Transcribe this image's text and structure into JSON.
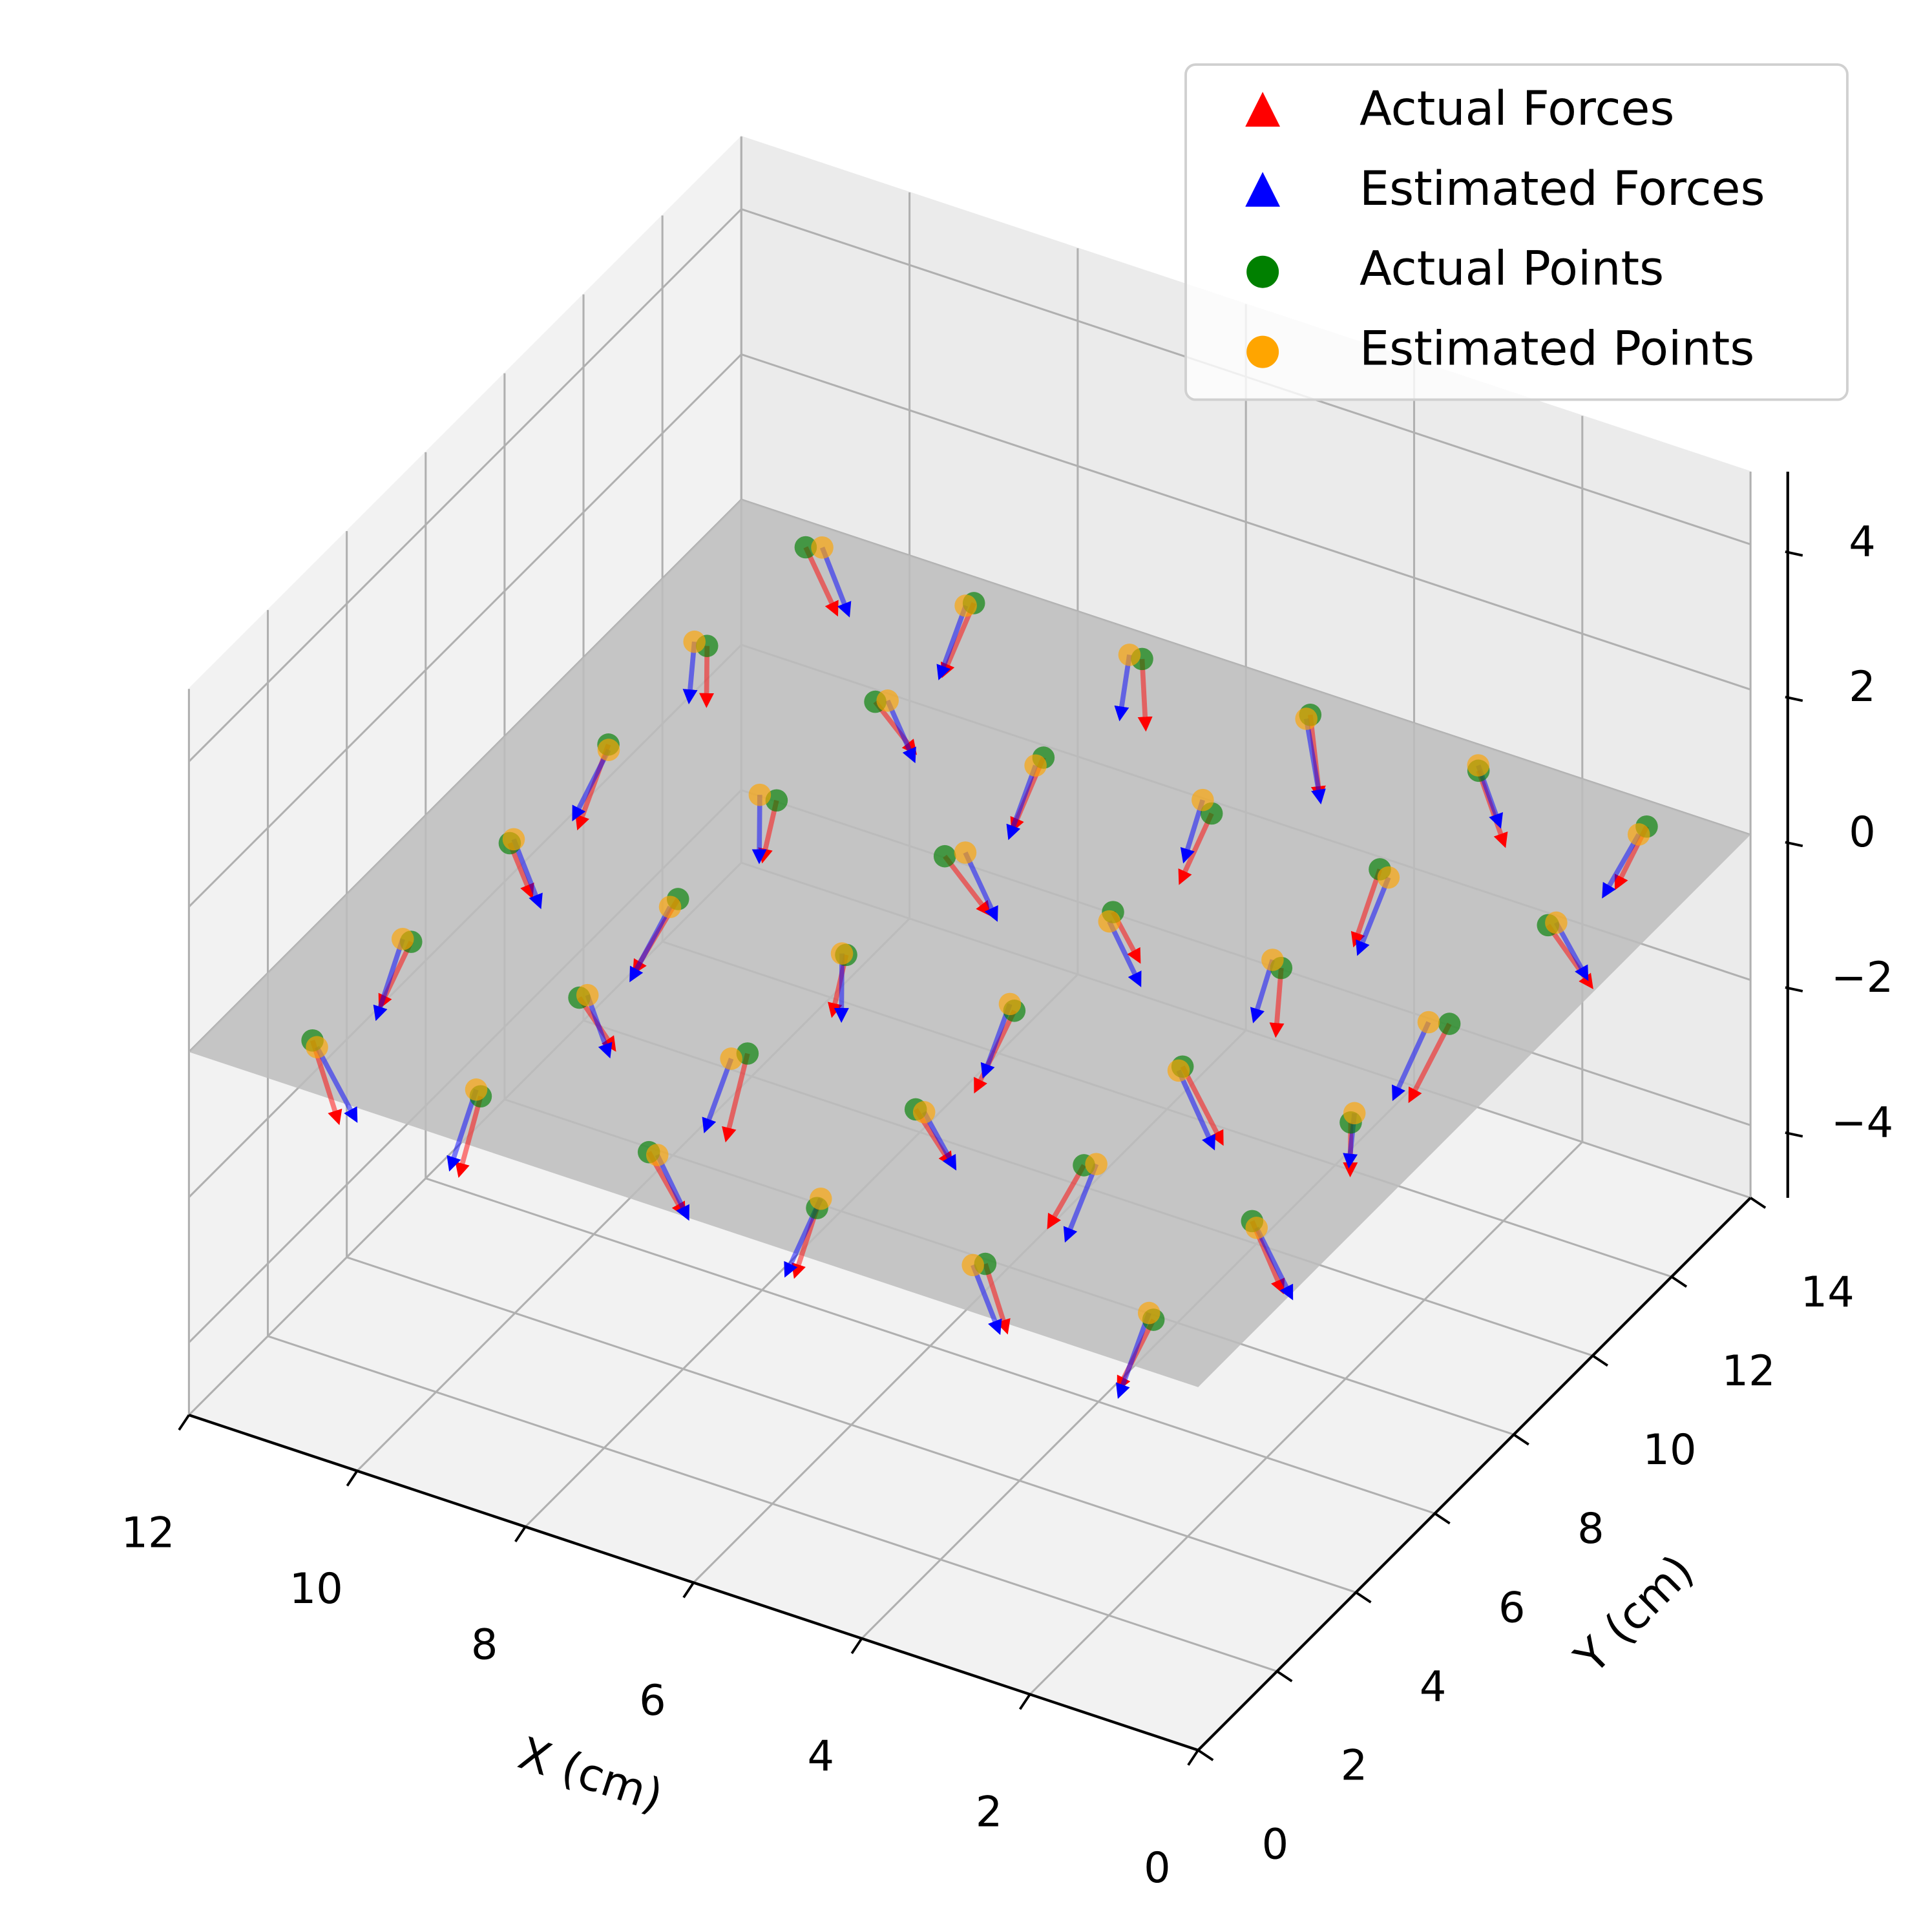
{
  "chart_data": {
    "type": "scatter3d",
    "x_label": "X (cm)",
    "y_label": "Y (cm)",
    "xlim": [
      0,
      12
    ],
    "ylim": [
      0,
      14
    ],
    "zlim": [
      -5,
      5
    ],
    "xticks": [
      0,
      2,
      4,
      6,
      8,
      10,
      12
    ],
    "yticks": [
      0,
      2,
      4,
      6,
      8,
      10,
      12,
      14
    ],
    "zticks": [
      {
        "value": -4,
        "label": "−4"
      },
      {
        "value": -2,
        "label": "−2"
      },
      0,
      2,
      4
    ],
    "grid": true,
    "legend": "upper right",
    "plane": {
      "z": 0,
      "color": "#bdbdbd"
    },
    "series": [
      {
        "name": "Actual Forces",
        "color": "red",
        "marker": "triangle",
        "x": [
          1,
          1,
          1,
          1,
          1,
          1,
          3,
          3,
          3,
          3,
          3,
          3,
          5,
          5,
          5,
          5,
          5,
          5,
          7,
          7,
          7,
          7,
          7,
          7,
          9,
          9,
          9,
          9,
          9,
          9,
          11,
          11,
          11,
          11,
          11,
          11
        ],
        "y": [
          1,
          3.5,
          6,
          8.5,
          11,
          13.5,
          1,
          3.5,
          6,
          8.5,
          11,
          13.5,
          1,
          3.5,
          6,
          8.5,
          11,
          13.5,
          1,
          3.5,
          6,
          8.5,
          11,
          13.5,
          1,
          3.5,
          6,
          8.5,
          11,
          13.5,
          1,
          3.5,
          6,
          8.5,
          11,
          13.5
        ],
        "z": [
          0,
          0,
          0,
          0,
          0,
          0,
          0,
          0,
          0,
          0,
          0,
          0,
          0,
          0,
          0,
          0,
          0,
          0,
          0,
          0,
          0,
          0,
          0,
          0,
          0,
          0,
          0,
          0,
          0,
          0,
          0,
          0,
          0,
          0,
          0,
          0
        ],
        "u": [
          0.3,
          -0.2,
          0.1,
          0.4,
          -0.3,
          0.2,
          -0.1,
          0.3,
          -0.4,
          0.2,
          0.1,
          -0.2,
          0.2,
          -0.3,
          0.3,
          -0.1,
          0.4,
          -0.2,
          -0.3,
          0.1,
          0.2,
          -0.4,
          0.3,
          0.1,
          0.1,
          -0.2,
          0.4,
          0.2,
          -0.3,
          0.3,
          -0.2,
          0.3,
          -0.1,
          0.2,
          0.1,
          -0.3
        ],
        "v": [
          -0.2,
          0.3,
          0.2,
          -0.1,
          0.4,
          -0.3,
          0.3,
          -0.2,
          0.1,
          0.3,
          -0.4,
          0.2,
          -0.1,
          0.2,
          -0.3,
          0.4,
          0.1,
          -0.2,
          0.2,
          -0.3,
          0.1,
          0.2,
          -0.1,
          0.3,
          -0.3,
          0.4,
          -0.2,
          0.1,
          0.3,
          -0.1,
          0.2,
          -0.1,
          0.3,
          -0.3,
          0.2,
          0.1
        ],
        "w": [
          -0.9,
          -1.0,
          -0.8,
          -1.1,
          -0.9,
          -0.7,
          -1.0,
          -0.8,
          -0.9,
          -1.1,
          -0.8,
          -1.0,
          -0.9,
          -0.7,
          -1.0,
          -0.8,
          -1.1,
          -0.9,
          -0.8,
          -1.0,
          -0.9,
          -0.7,
          -1.0,
          -1.1,
          -0.9,
          -0.8,
          -1.0,
          -0.9,
          -0.7,
          -1.0,
          -1.1,
          -0.9,
          -0.8,
          -1.0,
          -0.9,
          -0.8
        ]
      },
      {
        "name": "Estimated Forces",
        "color": "blue",
        "marker": "triangle",
        "x": [
          1.1,
          0.9,
          1.05,
          1.2,
          0.95,
          1.0,
          3.1,
          2.9,
          3.0,
          3.15,
          2.85,
          3.05,
          5.05,
          4.9,
          5.1,
          4.95,
          5.2,
          5.0,
          6.9,
          7.1,
          7.05,
          6.85,
          7.0,
          7.15,
          9.1,
          8.95,
          9.0,
          9.2,
          8.9,
          9.05,
          10.9,
          11.1,
          11.0,
          10.95,
          11.15,
          10.85
        ],
        "y": [
          1.1,
          3.4,
          6.2,
          8.4,
          11.1,
          13.3,
          0.9,
          3.6,
          5.9,
          8.6,
          10.9,
          13.6,
          1.2,
          3.5,
          6.1,
          8.3,
          11.2,
          13.4,
          1.0,
          3.3,
          6.0,
          8.7,
          10.8,
          13.5,
          1.1,
          3.6,
          5.8,
          8.5,
          11.1,
          13.4,
          0.9,
          3.5,
          6.1,
          8.4,
          11.0,
          13.6
        ],
        "z": [
          0,
          0,
          0,
          0,
          0,
          0,
          0,
          0,
          0,
          0,
          0,
          0,
          0,
          0,
          0,
          0,
          0,
          0,
          0,
          0,
          0,
          0,
          0,
          0,
          0,
          0,
          0,
          0,
          0,
          0,
          0,
          0,
          0,
          0,
          0,
          0
        ],
        "u": [
          0.2,
          -0.3,
          0.2,
          0.3,
          -0.2,
          0.3,
          -0.2,
          0.2,
          -0.3,
          0.3,
          0.2,
          -0.1,
          0.3,
          -0.2,
          0.2,
          -0.2,
          0.3,
          -0.3,
          -0.2,
          0.2,
          0.1,
          -0.3,
          0.2,
          0.2,
          0.2,
          -0.1,
          0.3,
          0.1,
          -0.2,
          0.2,
          -0.3,
          0.2,
          -0.2,
          0.3,
          0.2,
          -0.2
        ],
        "v": [
          -0.3,
          0.2,
          0.3,
          -0.2,
          0.3,
          -0.2,
          0.2,
          -0.3,
          0.2,
          0.2,
          -0.3,
          0.3,
          -0.2,
          0.3,
          -0.2,
          0.3,
          0.2,
          -0.3,
          0.3,
          -0.2,
          0.2,
          0.1,
          -0.2,
          0.2,
          -0.2,
          0.3,
          -0.3,
          0.2,
          0.2,
          -0.2,
          0.3,
          -0.2,
          0.2,
          -0.2,
          0.3,
          0.2
        ],
        "w": [
          -1.0,
          -0.9,
          -0.9,
          -1.0,
          -0.8,
          -0.8,
          -0.9,
          -0.9,
          -1.0,
          -1.0,
          -0.9,
          -0.9,
          -1.0,
          -0.8,
          -0.9,
          -0.9,
          -1.0,
          -0.8,
          -0.9,
          -0.9,
          -1.0,
          -0.8,
          -0.9,
          -1.0,
          -1.0,
          -0.9,
          -0.9,
          -1.0,
          -0.8,
          -0.9,
          -1.0,
          -1.0,
          -0.9,
          -0.9,
          -1.0,
          -0.9
        ]
      },
      {
        "name": "Actual Points",
        "color": "green",
        "marker": "circle",
        "x": [
          1,
          1,
          1,
          1,
          1,
          1,
          3,
          3,
          3,
          3,
          3,
          3,
          5,
          5,
          5,
          5,
          5,
          5,
          7,
          7,
          7,
          7,
          7,
          7,
          9,
          9,
          9,
          9,
          9,
          9,
          11,
          11,
          11,
          11,
          11,
          11
        ],
        "y": [
          1,
          3.5,
          6,
          8.5,
          11,
          13.5,
          1,
          3.5,
          6,
          8.5,
          11,
          13.5,
          1,
          3.5,
          6,
          8.5,
          11,
          13.5,
          1,
          3.5,
          6,
          8.5,
          11,
          13.5,
          1,
          3.5,
          6,
          8.5,
          11,
          13.5,
          1,
          3.5,
          6,
          8.5,
          11,
          13.5
        ],
        "z": [
          0,
          0,
          0,
          0,
          0,
          0,
          0,
          0,
          0,
          0,
          0,
          0,
          0,
          0,
          0,
          0,
          0,
          0,
          0,
          0,
          0,
          0,
          0,
          0,
          0,
          0,
          0,
          0,
          0,
          0,
          0,
          0,
          0,
          0,
          0,
          0
        ]
      },
      {
        "name": "Estimated Points",
        "color": "orange",
        "marker": "circle",
        "x": [
          1.1,
          0.9,
          1.05,
          1.2,
          0.95,
          1.0,
          3.1,
          2.9,
          3.0,
          3.15,
          2.85,
          3.05,
          5.05,
          4.9,
          5.1,
          4.95,
          5.2,
          5.0,
          6.9,
          7.1,
          7.05,
          6.85,
          7.0,
          7.15,
          9.1,
          8.95,
          9.0,
          9.2,
          8.9,
          9.05,
          10.9,
          11.1,
          11.0,
          10.95,
          11.15,
          10.85
        ],
        "y": [
          1.1,
          3.4,
          6.2,
          8.4,
          11.1,
          13.3,
          0.9,
          3.6,
          5.9,
          8.6,
          10.9,
          13.6,
          1.2,
          3.5,
          6.1,
          8.3,
          11.2,
          13.4,
          1.0,
          3.3,
          6.0,
          8.7,
          10.8,
          13.5,
          1.1,
          3.6,
          5.8,
          8.5,
          11.1,
          13.4,
          0.9,
          3.5,
          6.1,
          8.4,
          11.0,
          13.6
        ],
        "z": [
          0,
          0,
          0,
          0,
          0,
          0,
          0,
          0,
          0,
          0,
          0,
          0,
          0,
          0,
          0,
          0,
          0,
          0,
          0,
          0,
          0,
          0,
          0,
          0,
          0,
          0,
          0,
          0,
          0,
          0,
          0,
          0,
          0,
          0,
          0,
          0
        ]
      }
    ]
  }
}
